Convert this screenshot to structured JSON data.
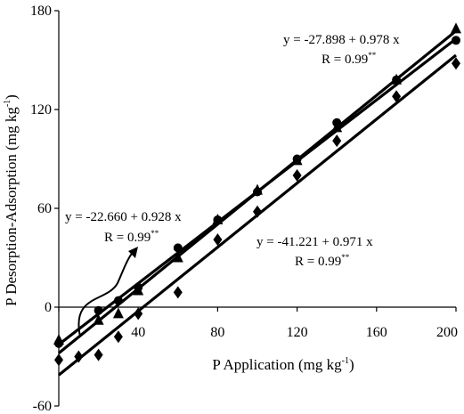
{
  "chart_data": {
    "type": "scatter",
    "xlim": [
      0,
      200
    ],
    "ylim": [
      -60,
      180
    ],
    "x_ticks": [
      0,
      40,
      80,
      120,
      160,
      200
    ],
    "y_ticks": [
      -60,
      0,
      60,
      120,
      180
    ],
    "x_tick_labels": [
      "0",
      "40",
      "80",
      "120",
      "160",
      "200"
    ],
    "y_tick_labels": [
      "-60",
      "0",
      "60",
      "120",
      "180"
    ],
    "xlabel": "P Application (mg kg",
    "xlabel_sup": "-1",
    "xlabel_close": ")",
    "ylabel": "P Desorption-Adsorption (mg kg",
    "ylabel_sup": "-1",
    "ylabel_close": ")",
    "grid": false,
    "series": [
      {
        "marker": "triangle",
        "line": {
          "intercept": -22.66,
          "slope": 0.928
        },
        "points": [
          [
            0,
            -20
          ],
          [
            20,
            -8
          ],
          [
            30,
            -4
          ],
          [
            40,
            10
          ],
          [
            60,
            30
          ],
          [
            80,
            53
          ],
          [
            100,
            71
          ],
          [
            120,
            89
          ],
          [
            140,
            109
          ],
          [
            170,
            138
          ],
          [
            200,
            169
          ]
        ]
      },
      {
        "marker": "circle",
        "line": {
          "intercept": -27.898,
          "slope": 0.978
        },
        "points": [
          [
            0,
            -22
          ],
          [
            20,
            -2
          ],
          [
            30,
            4
          ],
          [
            40,
            12
          ],
          [
            60,
            36
          ],
          [
            80,
            53
          ],
          [
            100,
            70
          ],
          [
            120,
            90
          ],
          [
            140,
            112
          ],
          [
            170,
            138
          ],
          [
            200,
            162
          ]
        ]
      },
      {
        "marker": "diamond",
        "line": {
          "intercept": -41.221,
          "slope": 0.971
        },
        "points": [
          [
            0,
            -32
          ],
          [
            10,
            -30
          ],
          [
            20,
            -29
          ],
          [
            30,
            -18
          ],
          [
            40,
            -4
          ],
          [
            60,
            9
          ],
          [
            80,
            41
          ],
          [
            100,
            58
          ],
          [
            120,
            80
          ],
          [
            140,
            101
          ],
          [
            170,
            128
          ],
          [
            200,
            148
          ]
        ]
      }
    ],
    "annotations": {
      "eq1_line": "y = -22.660 + 0.928 x",
      "eq1_r": "R = 0.99",
      "eq2_line": "y = -27.898 + 0.978 x",
      "eq2_r": "R = 0.99",
      "eq3_line": "y = -41.221 + 0.971 x",
      "eq3_r": "R = 0.99",
      "sig": "**"
    }
  }
}
